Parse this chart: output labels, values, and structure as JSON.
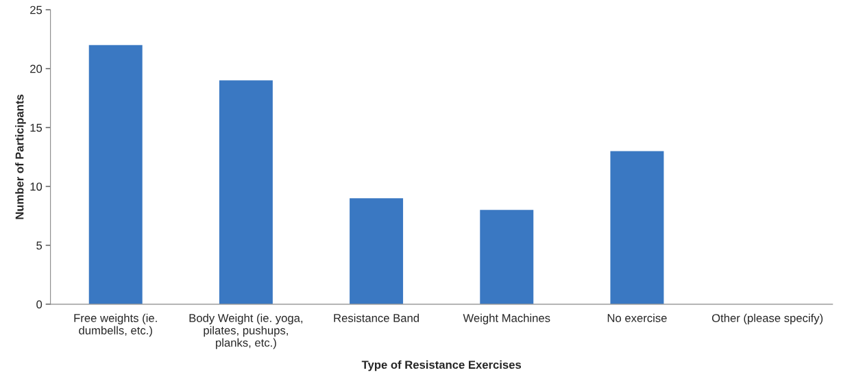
{
  "chart_data": {
    "type": "bar",
    "xlabel": "Type of Resistance Exercises",
    "ylabel": "Number of Participants",
    "categories": [
      "Free weights (ie.\ndumbells, etc.)",
      "Body Weight (ie. yoga,\npilates, pushups,\nplanks, etc.)",
      "Resistance Band",
      "Weight Machines",
      "No exercise",
      "Other (please specify)"
    ],
    "values": [
      22,
      19,
      9,
      8,
      13,
      0
    ],
    "color": "#3a78c2",
    "ylim": [
      0,
      25
    ],
    "yticks": [
      0,
      5,
      10,
      15,
      20,
      25
    ],
    "grid": false,
    "legend": false
  }
}
